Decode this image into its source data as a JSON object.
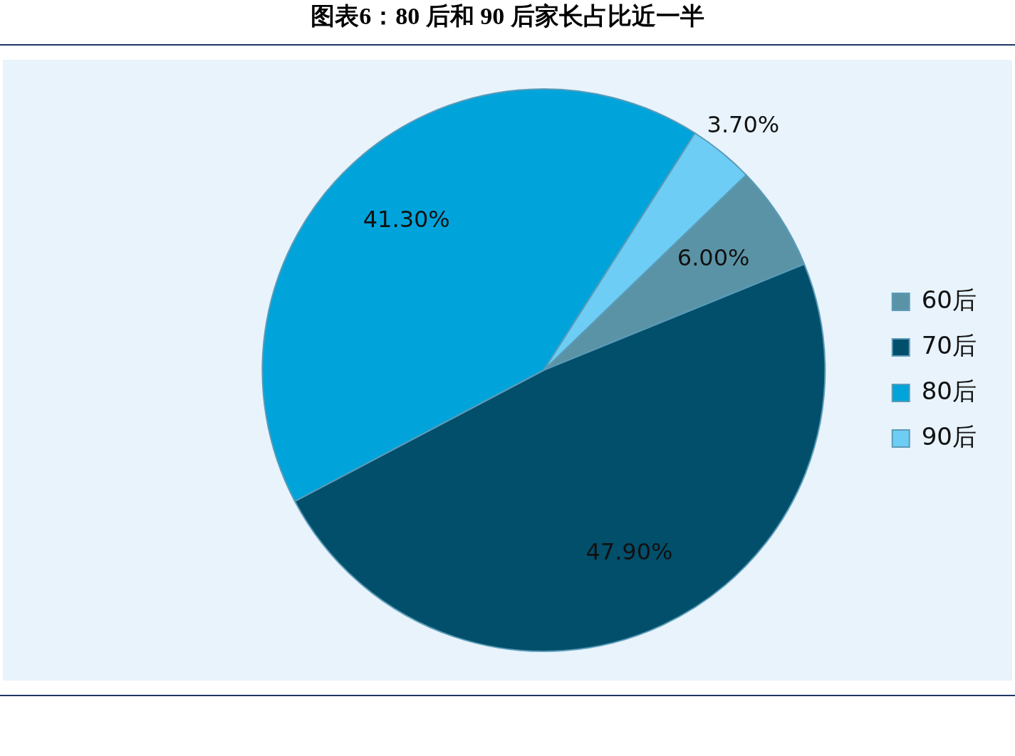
{
  "chart_data": {
    "type": "pie",
    "title": "图表6：80 后和 90 后家长占比近一半",
    "categories": [
      "60后",
      "70后",
      "80后",
      "90后"
    ],
    "values": [
      6.0,
      47.9,
      41.3,
      3.7
    ],
    "colors": [
      "#5b93a6",
      "#024f6b",
      "#00a4db",
      "#6dcdf5"
    ],
    "value_labels": [
      "6.00%",
      "47.90%",
      "41.30%",
      "3.70%"
    ],
    "legend": "right"
  }
}
